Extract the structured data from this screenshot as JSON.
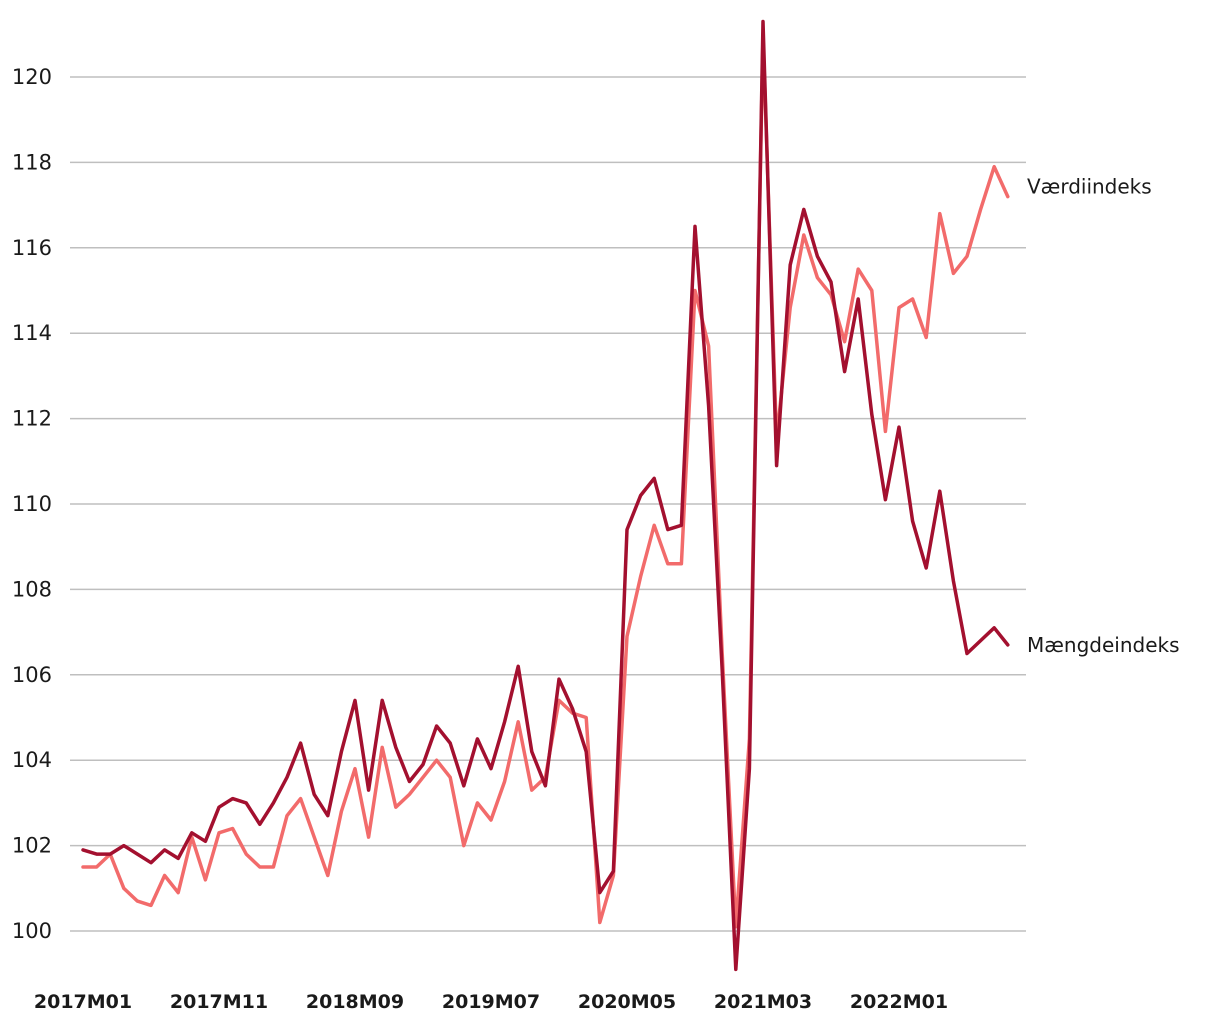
{
  "chart_data": {
    "type": "line",
    "title": "",
    "xlabel": "",
    "ylabel": "",
    "ylim": [
      99,
      121.3
    ],
    "yticks": [
      100,
      102,
      104,
      106,
      108,
      110,
      112,
      114,
      116,
      118,
      120
    ],
    "ytick_labels": [
      "100",
      "102",
      "104",
      "106",
      "108",
      "110",
      "112",
      "114",
      "116",
      "118",
      "120"
    ],
    "xtick_labels": [
      "2017M01",
      "2017M11",
      "2018M09",
      "2019M07",
      "2020M05",
      "2021M03",
      "2022M01"
    ],
    "grid": "horizontal",
    "x": [
      "2017M01",
      "2017M02",
      "2017M03",
      "2017M04",
      "2017M05",
      "2017M06",
      "2017M07",
      "2017M08",
      "2017M09",
      "2017M10",
      "2017M11",
      "2017M12",
      "2018M01",
      "2018M02",
      "2018M03",
      "2018M04",
      "2018M05",
      "2018M06",
      "2018M07",
      "2018M08",
      "2018M09",
      "2018M10",
      "2018M11",
      "2018M12",
      "2019M01",
      "2019M02",
      "2019M03",
      "2019M04",
      "2019M05",
      "2019M06",
      "2019M07",
      "2019M08",
      "2019M09",
      "2019M10",
      "2019M11",
      "2019M12",
      "2020M01",
      "2020M02",
      "2020M03",
      "2020M04",
      "2020M05",
      "2020M06",
      "2020M07",
      "2020M08",
      "2020M09",
      "2020M10",
      "2020M11",
      "2020M12",
      "2021M01",
      "2021M02",
      "2021M03",
      "2021M04",
      "2021M05",
      "2021M06",
      "2021M07",
      "2021M08",
      "2021M09",
      "2021M10",
      "2021M11",
      "2021M12",
      "2022M01",
      "2022M02",
      "2022M03",
      "2022M04",
      "2022M05",
      "2022M06",
      "2022M07",
      "2022M08",
      "2022M09"
    ],
    "series": [
      {
        "name": "Værdiindeks",
        "color": "#f26b6b",
        "values": [
          101.5,
          101.5,
          101.8,
          101.0,
          100.7,
          100.6,
          101.3,
          100.9,
          102.2,
          101.2,
          102.3,
          102.4,
          101.8,
          101.5,
          101.5,
          102.7,
          103.1,
          102.2,
          101.3,
          102.8,
          103.8,
          102.2,
          104.3,
          102.9,
          103.2,
          103.6,
          104.0,
          103.6,
          102.0,
          103.0,
          102.6,
          103.5,
          104.9,
          103.3,
          103.6,
          105.4,
          105.1,
          105.0,
          100.2,
          101.3,
          106.9,
          108.3,
          109.5,
          108.6,
          108.6,
          115.0,
          113.7,
          106.5,
          100.1,
          104.5,
          121.0,
          111.5,
          114.6,
          116.3,
          115.3,
          114.9,
          113.8,
          115.5,
          115.0,
          111.7,
          114.6,
          114.8,
          113.9,
          116.8,
          115.4,
          115.8,
          116.9,
          117.9,
          117.2
        ]
      },
      {
        "name": "Mængdeindeks",
        "color": "#a3102f",
        "values": [
          101.9,
          101.8,
          101.8,
          102.0,
          101.8,
          101.6,
          101.9,
          101.7,
          102.3,
          102.1,
          102.9,
          103.1,
          103.0,
          102.5,
          103.0,
          103.6,
          104.4,
          103.2,
          102.7,
          104.2,
          105.4,
          103.3,
          105.4,
          104.3,
          103.5,
          103.9,
          104.8,
          104.4,
          103.4,
          104.5,
          103.8,
          104.9,
          106.2,
          104.2,
          103.4,
          105.9,
          105.2,
          104.2,
          100.9,
          101.4,
          109.4,
          110.2,
          110.6,
          109.4,
          109.5,
          116.5,
          112.3,
          106.1,
          99.1,
          103.8,
          121.3,
          110.9,
          115.6,
          116.9,
          115.8,
          115.2,
          113.1,
          114.8,
          112.1,
          110.1,
          111.8,
          109.6,
          108.5,
          110.3,
          108.2,
          106.5,
          106.8,
          107.1,
          106.7
        ]
      }
    ]
  }
}
